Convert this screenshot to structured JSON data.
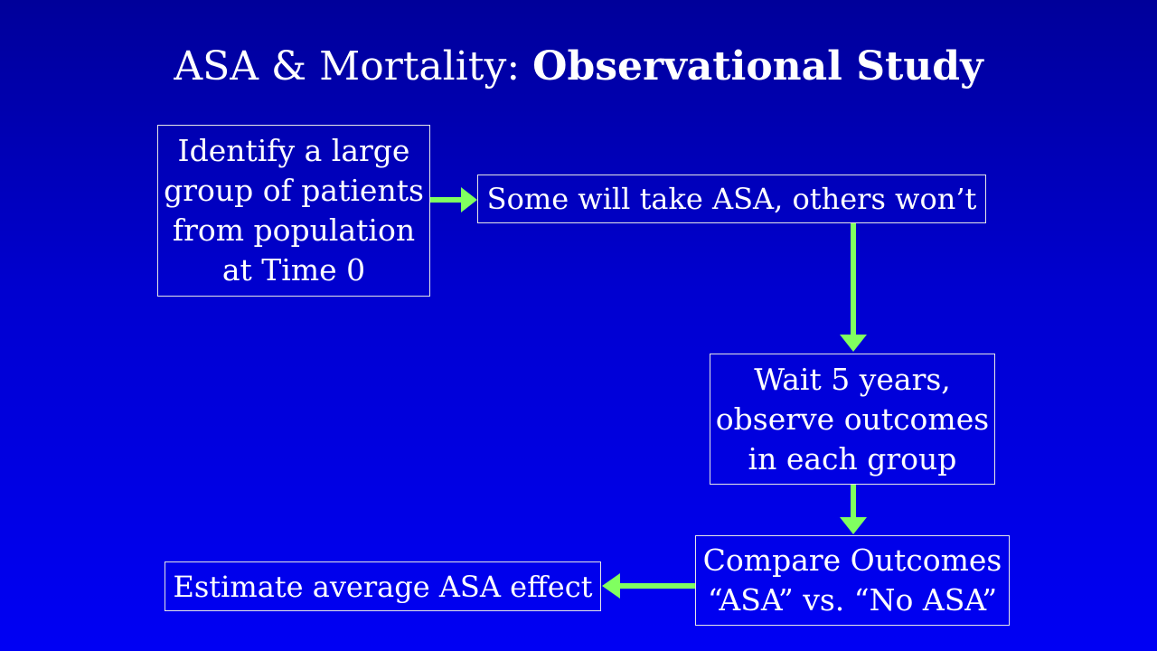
{
  "slide": {
    "title_plain": "ASA & Mortality: ",
    "title_bold": "Observational Study"
  },
  "diagram": {
    "arrow_color": "#80ff60",
    "nodes": {
      "identify": "Identify a large\ngroup of patients\nfrom population\nat Time 0",
      "some_take": "Some will take ASA, others won’t",
      "wait": "Wait 5 years,\nobserve outcomes\nin each group",
      "compare": "Compare Outcomes\n“ASA” vs. “No ASA”",
      "estimate": "Estimate average ASA effect"
    }
  }
}
